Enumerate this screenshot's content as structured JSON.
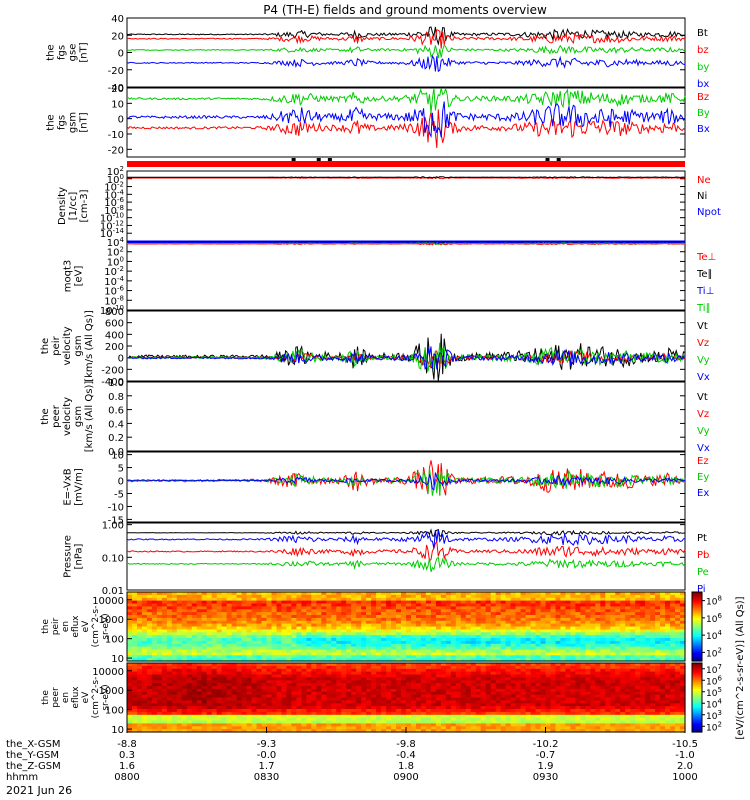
{
  "title": "P4 (TH-E) fields and ground moments overview",
  "date_label": "2021 Jun 26",
  "colors": {
    "black": "#000000",
    "red": "#ff0000",
    "green": "#00cc00",
    "blue": "#0000ff"
  },
  "chart_data": {
    "type": "line",
    "x_axis": {
      "time_range": [
        "0800",
        "1000"
      ],
      "ticks": [
        "0800",
        "0830",
        "0900",
        "0930",
        "1000"
      ],
      "ephemeris_rows": [
        {
          "label": "the_X-GSM",
          "values": [
            "-8.8",
            "-9.3",
            "-9.8",
            "-10.2",
            "-10.5"
          ]
        },
        {
          "label": "the_Y-GSM",
          "values": [
            "0.3",
            "-0.0",
            "-0.4",
            "-0.7",
            "-1.0"
          ]
        },
        {
          "label": "the_Z-GSM",
          "values": [
            "1.6",
            "1.7",
            "1.8",
            "1.9",
            "2.0"
          ]
        },
        {
          "label": "hhmm",
          "values": [
            "0800",
            "0830",
            "0900",
            "0930",
            "1000"
          ]
        }
      ]
    },
    "panels": [
      {
        "id": "fgs_gse",
        "ylabel": [
          "the",
          "fgs",
          "gse",
          "[nT]"
        ],
        "scale": "linear",
        "ylim": [
          -40,
          40
        ],
        "ticks": [
          "40",
          "20",
          "0",
          "-20",
          "-40"
        ],
        "tick_values": [
          40,
          20,
          0,
          -20,
          -40
        ],
        "series": [
          {
            "name": "Bt",
            "color": "#000000",
            "base": 21,
            "disturb": 5
          },
          {
            "name": "bz",
            "color": "#ff0000",
            "base": 16,
            "disturb": 5
          },
          {
            "name": "by",
            "color": "#00cc00",
            "base": 3,
            "disturb": 4
          },
          {
            "name": "bx",
            "color": "#0000ff",
            "base": -12,
            "disturb": 5
          }
        ]
      },
      {
        "id": "fgs_gsm",
        "ylabel": [
          "the",
          "fgs",
          "gsm",
          "[nT]"
        ],
        "scale": "linear",
        "ylim": [
          -25,
          20
        ],
        "ticks": [
          "20",
          "10",
          "0",
          "-10",
          "-20"
        ],
        "tick_values": [
          20,
          10,
          0,
          -10,
          -20
        ],
        "series": [
          {
            "name": "Bz",
            "color": "#ff0000",
            "base": -6,
            "disturb": 6
          },
          {
            "name": "By",
            "color": "#00cc00",
            "base": 13,
            "disturb": 5
          },
          {
            "name": "Bx",
            "color": "#0000ff",
            "base": 1,
            "disturb": 7
          }
        ]
      },
      {
        "id": "density",
        "ylabel": [
          "Density",
          "[1/cc]",
          "[cm-3]"
        ],
        "scale": "log",
        "ylim": [
          -16,
          2
        ],
        "ticks": [
          "10^2",
          "10^0",
          "10^-2",
          "10^-4",
          "10^-6",
          "10^-8",
          "10^-10",
          "10^-12",
          "10^-14"
        ],
        "tick_values": [
          2,
          0,
          -2,
          -4,
          -6,
          -8,
          -10,
          -12,
          -14
        ],
        "series": [
          {
            "name": "Ne",
            "color": "#ff0000",
            "base": 0.2,
            "disturb": 0.1
          },
          {
            "name": "Ni",
            "color": "#000000",
            "base": 0.4,
            "disturb": 0.1
          },
          {
            "name": "Npot",
            "color": "#0000ff",
            "base": -16,
            "disturb": 0
          }
        ]
      },
      {
        "id": "temperature",
        "ylabel": [
          "moqt3",
          "[eV]"
        ],
        "scale": "log",
        "ylim": [
          -10,
          4
        ],
        "ticks": [
          "10^4",
          "10^2",
          "10^0",
          "10^-2",
          "10^-4",
          "10^-6",
          "10^-8",
          "10^-10"
        ],
        "tick_values": [
          4,
          2,
          0,
          -2,
          -4,
          -6,
          -8,
          -10
        ],
        "series": [
          {
            "name": "Te⊥",
            "color": "#ff0000",
            "base": 3.6,
            "disturb": 0.1
          },
          {
            "name": "Te∥",
            "color": "#000000",
            "base": 3.8,
            "disturb": 0.1
          },
          {
            "name": "Ti⊥",
            "color": "#0000ff",
            "base": 3.9,
            "disturb": 0.1
          },
          {
            "name": "Ti∥",
            "color": "#00cc00",
            "base": 3.7,
            "disturb": 0.1
          }
        ]
      },
      {
        "id": "peir_velocity",
        "ylabel": [
          "the",
          "peir",
          "velocity",
          "gsm",
          "[km/s (All Qs)]"
        ],
        "scale": "linear",
        "ylim": [
          -400,
          800
        ],
        "ticks": [
          "800",
          "600",
          "400",
          "200",
          "0",
          "-200",
          "-400"
        ],
        "tick_values": [
          800,
          600,
          400,
          200,
          0,
          -200,
          -400
        ],
        "series": [
          {
            "name": "Vt",
            "color": "#000000",
            "base": 20,
            "disturb": 200
          },
          {
            "name": "Vz",
            "color": "#ff0000",
            "base": 0,
            "disturb": 80
          },
          {
            "name": "Vy",
            "color": "#00cc00",
            "base": 0,
            "disturb": 150
          },
          {
            "name": "Vx",
            "color": "#0000ff",
            "base": -5,
            "disturb": 120
          }
        ]
      },
      {
        "id": "peer_velocity",
        "ylabel": [
          "the",
          "peer",
          "velocity",
          "gsm",
          "[km/s (All Qs)]"
        ],
        "scale": "linear",
        "ylim": [
          0,
          1
        ],
        "ticks": [
          "1.0",
          "0.8",
          "0.6",
          "0.4",
          "0.2",
          "0.0"
        ],
        "tick_values": [
          1,
          0.8,
          0.6,
          0.4,
          0.2,
          0
        ],
        "series": [
          {
            "name": "Vt",
            "color": "#000000",
            "base": null,
            "disturb": 0
          },
          {
            "name": "Vz",
            "color": "#ff0000",
            "base": null,
            "disturb": 0
          },
          {
            "name": "Vy",
            "color": "#00cc00",
            "base": null,
            "disturb": 0
          },
          {
            "name": "Vx",
            "color": "#0000ff",
            "base": null,
            "disturb": 0
          }
        ]
      },
      {
        "id": "efield",
        "ylabel": [
          "E=-VxB",
          "[mV/m]"
        ],
        "scale": "linear",
        "ylim": [
          -16,
          11
        ],
        "ticks": [
          "10",
          "5",
          "0",
          "-5",
          "-10",
          "-15"
        ],
        "tick_values": [
          10,
          5,
          0,
          -5,
          -10,
          -15
        ],
        "series": [
          {
            "name": "Ez",
            "color": "#ff0000",
            "base": 0,
            "disturb": 4
          },
          {
            "name": "Ey",
            "color": "#00cc00",
            "base": 0,
            "disturb": 3
          },
          {
            "name": "Ex",
            "color": "#0000ff",
            "base": 0,
            "disturb": 1.5
          }
        ]
      },
      {
        "id": "pressure",
        "ylabel": [
          "Pressure",
          "[nPa]"
        ],
        "scale": "log",
        "ylim": [
          -2,
          0.05
        ],
        "ticks": [
          "1.00",
          "0.10",
          "0.01"
        ],
        "tick_values": [
          0,
          -1,
          -2
        ],
        "series": [
          {
            "name": "Pt",
            "color": "#000000",
            "base": -0.25,
            "disturb": 0.05
          },
          {
            "name": "Pb",
            "color": "#ff0000",
            "base": -0.82,
            "disturb": 0.15
          },
          {
            "name": "Pe",
            "color": "#00cc00",
            "base": -1.2,
            "disturb": 0.12
          },
          {
            "name": "Pi",
            "color": "#0000ff",
            "base": -0.45,
            "disturb": 0.15
          }
        ]
      }
    ],
    "spectrograms": [
      {
        "id": "peir_eflux",
        "ylabel": [
          "the",
          "peir",
          "en",
          "eflux",
          "eV",
          "(cm^2-s-",
          "sr-eV)"
        ],
        "ticks": [
          "10000",
          "1000",
          "100",
          "10"
        ],
        "tick_values": [
          4,
          3,
          2,
          1
        ],
        "ylim": [
          0.85,
          4.4
        ],
        "colorbar_ticks": [
          "10^8",
          "10^6",
          "10^4",
          "10^2"
        ],
        "colorbar_range": [
          1,
          9
        ]
      },
      {
        "id": "peer_eflux",
        "ylabel": [
          "the",
          "peer",
          "en",
          "eflux",
          "eV",
          "(cm^2-s-",
          "sr-eV)"
        ],
        "ticks": [
          "10000",
          "1000",
          "100",
          "10"
        ],
        "tick_values": [
          4,
          3,
          2,
          1
        ],
        "ylim": [
          0.85,
          4.4
        ],
        "colorbar_ticks": [
          "10^7",
          "10^6",
          "10^5",
          "10^4",
          "10^3",
          "10^2"
        ],
        "colorbar_range": [
          1.5,
          7.5
        ]
      }
    ],
    "colorbar_label": "[eV/(cm^2-s-sr-eV)] (All Qs)]"
  }
}
